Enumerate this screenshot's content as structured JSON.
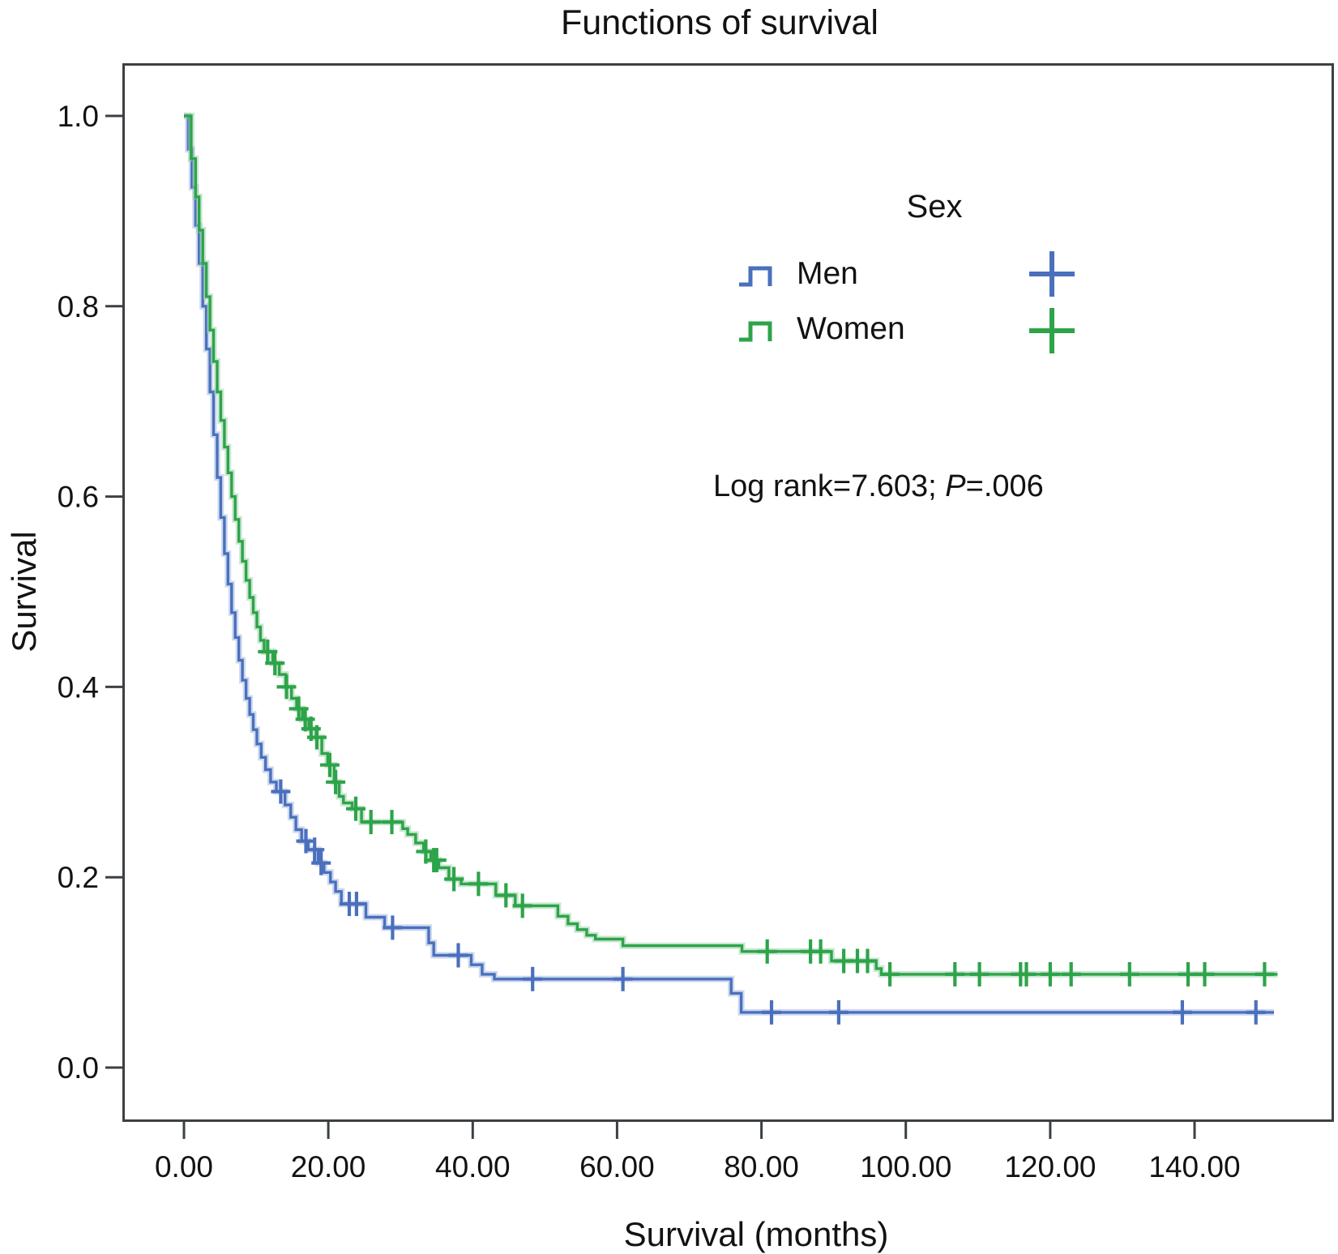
{
  "title": "Functions of survival",
  "legend": {
    "title": "Sex",
    "items": [
      {
        "label": "Men",
        "color": "#4a70bd",
        "halo": "#9db4e0"
      },
      {
        "label": "Women",
        "color": "#2da449",
        "halo": "#96cfa6"
      }
    ]
  },
  "annotation": {
    "prefix": "Log rank=7.603; ",
    "italic": "P",
    "suffix": "=.006"
  },
  "chart_data": {
    "type": "line",
    "subtype": "kaplan-meier-step",
    "title": "Functions of survival",
    "xlabel": "Survival (months)",
    "ylabel": "Survival",
    "xlim": [
      0,
      159
    ],
    "ylim": [
      0,
      1.05
    ],
    "grid": false,
    "legend_position": "inside-upper-right",
    "axis_color": "#3c4043",
    "xticks": {
      "values": [
        0,
        20,
        40,
        60,
        80,
        100,
        120,
        140
      ],
      "labels": [
        "0.00",
        "20.00",
        "40.00",
        "60.00",
        "80.00",
        "100.00",
        "120.00",
        "140.00"
      ]
    },
    "yticks": {
      "values": [
        0,
        0.2,
        0.4,
        0.6,
        0.8,
        1.0
      ],
      "labels": [
        "0.0",
        "0.2",
        "0.4",
        "0.6",
        "0.8",
        "1.0"
      ]
    },
    "stats": {
      "log_rank": 7.603,
      "p_value": 0.006
    },
    "series": [
      {
        "name": "Men",
        "color": "#4a70bd",
        "halo": "#9db4e0",
        "steps": [
          [
            0,
            1.0
          ],
          [
            0.6,
            0.965
          ],
          [
            1.1,
            0.925
          ],
          [
            1.6,
            0.885
          ],
          [
            2.1,
            0.845
          ],
          [
            2.6,
            0.8
          ],
          [
            3.1,
            0.755
          ],
          [
            3.6,
            0.71
          ],
          [
            4.1,
            0.665
          ],
          [
            4.6,
            0.62
          ],
          [
            5.1,
            0.578
          ],
          [
            5.6,
            0.54
          ],
          [
            6.1,
            0.508
          ],
          [
            6.6,
            0.478
          ],
          [
            7.1,
            0.452
          ],
          [
            7.6,
            0.428
          ],
          [
            8.1,
            0.407
          ],
          [
            8.6,
            0.388
          ],
          [
            9.1,
            0.371
          ],
          [
            9.6,
            0.355
          ],
          [
            10.1,
            0.34
          ],
          [
            10.7,
            0.326
          ],
          [
            11.3,
            0.313
          ],
          [
            12.0,
            0.3
          ],
          [
            12.8,
            0.29
          ],
          [
            14.0,
            0.276
          ],
          [
            14.8,
            0.263
          ],
          [
            15.5,
            0.25
          ],
          [
            16.3,
            0.238
          ],
          [
            17.2,
            0.229
          ],
          [
            18.6,
            0.215
          ],
          [
            19.4,
            0.205
          ],
          [
            20.3,
            0.195
          ],
          [
            21.0,
            0.185
          ],
          [
            21.8,
            0.172
          ],
          [
            25.2,
            0.158
          ],
          [
            27.8,
            0.147
          ],
          [
            33.9,
            0.131
          ],
          [
            34.6,
            0.118
          ],
          [
            39.8,
            0.108
          ],
          [
            41.3,
            0.098
          ],
          [
            43.0,
            0.093
          ],
          [
            75.8,
            0.078
          ],
          [
            77.2,
            0.058
          ],
          [
            151.0,
            0.058
          ]
        ],
        "censors": [
          [
            13.4,
            0.29
          ],
          [
            16.9,
            0.238
          ],
          [
            18.1,
            0.229
          ],
          [
            19.0,
            0.215
          ],
          [
            22.9,
            0.172
          ],
          [
            23.9,
            0.172
          ],
          [
            28.9,
            0.147
          ],
          [
            38.0,
            0.118
          ],
          [
            48.3,
            0.093
          ],
          [
            60.8,
            0.093
          ],
          [
            81.4,
            0.058
          ],
          [
            90.7,
            0.058
          ],
          [
            138.3,
            0.058
          ],
          [
            148.5,
            0.058
          ]
        ]
      },
      {
        "name": "Women",
        "color": "#2da449",
        "halo": "#96cfa6",
        "steps": [
          [
            0,
            1.0
          ],
          [
            1.0,
            0.955
          ],
          [
            1.6,
            0.915
          ],
          [
            2.1,
            0.88
          ],
          [
            2.6,
            0.845
          ],
          [
            3.1,
            0.81
          ],
          [
            3.6,
            0.775
          ],
          [
            4.1,
            0.742
          ],
          [
            4.6,
            0.71
          ],
          [
            5.1,
            0.68
          ],
          [
            5.6,
            0.652
          ],
          [
            6.1,
            0.625
          ],
          [
            6.6,
            0.6
          ],
          [
            7.1,
            0.576
          ],
          [
            7.6,
            0.553
          ],
          [
            8.1,
            0.532
          ],
          [
            8.6,
            0.512
          ],
          [
            9.1,
            0.494
          ],
          [
            9.6,
            0.478
          ],
          [
            10.1,
            0.463
          ],
          [
            10.6,
            0.449
          ],
          [
            11.1,
            0.437
          ],
          [
            12.3,
            0.425
          ],
          [
            13.2,
            0.413
          ],
          [
            14.1,
            0.4
          ],
          [
            14.9,
            0.388
          ],
          [
            15.6,
            0.377
          ],
          [
            16.4,
            0.366
          ],
          [
            17.3,
            0.356
          ],
          [
            18.3,
            0.347
          ],
          [
            19.1,
            0.33
          ],
          [
            19.9,
            0.318
          ],
          [
            20.8,
            0.3
          ],
          [
            21.5,
            0.285
          ],
          [
            22.1,
            0.278
          ],
          [
            23.3,
            0.272
          ],
          [
            24.6,
            0.258
          ],
          [
            30.3,
            0.251
          ],
          [
            31.0,
            0.245
          ],
          [
            32.1,
            0.236
          ],
          [
            33.2,
            0.227
          ],
          [
            34.2,
            0.218
          ],
          [
            35.3,
            0.21
          ],
          [
            36.7,
            0.198
          ],
          [
            38.4,
            0.193
          ],
          [
            43.2,
            0.181
          ],
          [
            45.9,
            0.17
          ],
          [
            51.8,
            0.159
          ],
          [
            53.2,
            0.151
          ],
          [
            54.5,
            0.145
          ],
          [
            55.8,
            0.139
          ],
          [
            57.0,
            0.135
          ],
          [
            60.8,
            0.128
          ],
          [
            77.3,
            0.122
          ],
          [
            89.7,
            0.112
          ],
          [
            95.9,
            0.104
          ],
          [
            96.6,
            0.098
          ],
          [
            151.5,
            0.098
          ]
        ],
        "censors": [
          [
            11.6,
            0.437
          ],
          [
            12.6,
            0.425
          ],
          [
            14.2,
            0.4
          ],
          [
            15.9,
            0.377
          ],
          [
            16.8,
            0.366
          ],
          [
            17.6,
            0.356
          ],
          [
            18.4,
            0.347
          ],
          [
            20.2,
            0.318
          ],
          [
            21.0,
            0.3
          ],
          [
            23.8,
            0.272
          ],
          [
            25.9,
            0.258
          ],
          [
            28.8,
            0.258
          ],
          [
            33.5,
            0.227
          ],
          [
            34.6,
            0.218
          ],
          [
            35.0,
            0.218
          ],
          [
            37.4,
            0.198
          ],
          [
            40.8,
            0.193
          ],
          [
            44.6,
            0.181
          ],
          [
            46.9,
            0.17
          ],
          [
            80.8,
            0.122
          ],
          [
            86.8,
            0.122
          ],
          [
            88.2,
            0.122
          ],
          [
            91.4,
            0.112
          ],
          [
            93.3,
            0.112
          ],
          [
            94.7,
            0.112
          ],
          [
            97.8,
            0.098
          ],
          [
            106.8,
            0.098
          ],
          [
            110.2,
            0.098
          ],
          [
            115.9,
            0.098
          ],
          [
            116.7,
            0.098
          ],
          [
            120.0,
            0.098
          ],
          [
            122.9,
            0.098
          ],
          [
            131.0,
            0.098
          ],
          [
            139.1,
            0.098
          ],
          [
            141.4,
            0.098
          ],
          [
            149.7,
            0.098
          ]
        ]
      }
    ]
  }
}
